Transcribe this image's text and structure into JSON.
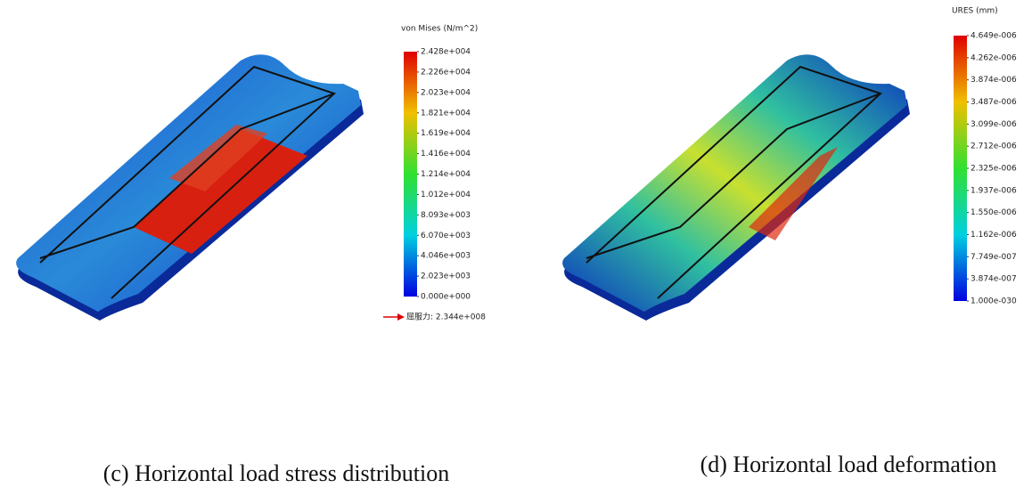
{
  "panels": [
    {
      "legend": {
        "title": "von Mises (N/m^2)",
        "labels": [
          "2.428e+004",
          "2.226e+004",
          "2.023e+004",
          "1.821e+004",
          "1.619e+004",
          "1.416e+004",
          "1.214e+004",
          "1.012e+004",
          "8.093e+003",
          "6.070e+003",
          "4.046e+003",
          "2.023e+003",
          "0.000e+000"
        ],
        "yield": "屈服力: 2.344e+008"
      },
      "caption": "(c) Horizontal load stress distribution"
    },
    {
      "legend": {
        "title": "URES (mm)",
        "labels": [
          "4.649e-006",
          "4.262e-006",
          "3.874e-006",
          "3.487e-006",
          "3.099e-006",
          "2.712e-006",
          "2.325e-006",
          "1.937e-006",
          "1.550e-006",
          "1.162e-006",
          "7.749e-007",
          "3.874e-007",
          "1.000e-030"
        ]
      },
      "caption": "(d) Horizontal load deformation"
    }
  ]
}
